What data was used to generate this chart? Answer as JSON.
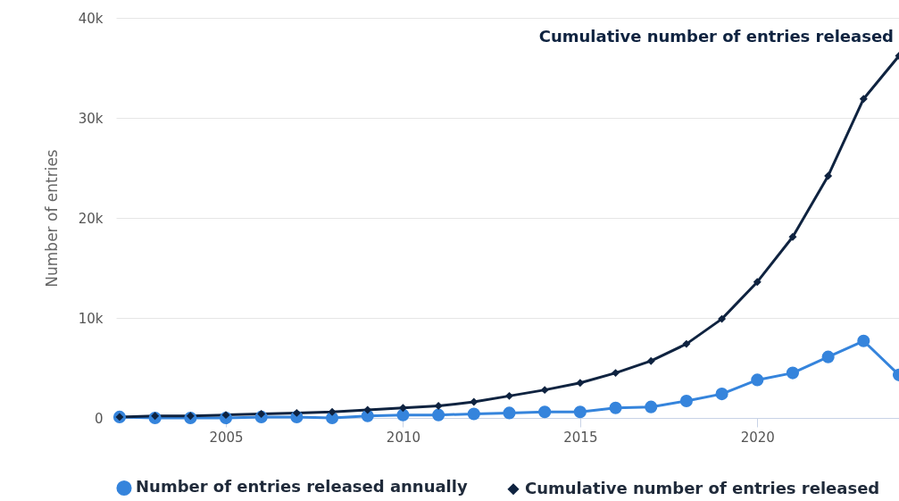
{
  "chart_data": {
    "type": "line",
    "ylabel": "Number of entries",
    "x": [
      2002,
      2003,
      2004,
      2005,
      2006,
      2007,
      2008,
      2009,
      2010,
      2011,
      2012,
      2013,
      2014,
      2015,
      2016,
      2017,
      2018,
      2019,
      2020,
      2021,
      2022,
      2023,
      2024
    ],
    "series": [
      {
        "name": "Number of entries released annually",
        "color": "#3584dc",
        "marker": "circle",
        "values": [
          100,
          0,
          0,
          0,
          100,
          100,
          0,
          200,
          300,
          300,
          400,
          500,
          600,
          600,
          1000,
          1100,
          1700,
          2400,
          3800,
          4500,
          6100,
          7700,
          4300
        ]
      },
      {
        "name": "Cumulative number of entries released",
        "color": "#0f2340",
        "marker": "diamond",
        "values": [
          100,
          200,
          200,
          300,
          400,
          500,
          600,
          800,
          1000,
          1200,
          1600,
          2200,
          2800,
          3500,
          4500,
          5700,
          7400,
          9900,
          13600,
          18100,
          24200,
          31900,
          36200
        ]
      }
    ],
    "xlim": [
      2001.9,
      2024
    ],
    "xticks": [
      2005,
      2010,
      2015,
      2020
    ],
    "ylim": [
      0,
      40000
    ],
    "yticks": [
      0,
      {
        "value": 10000,
        "label": "10k"
      },
      {
        "value": 20000,
        "label": "20k"
      },
      {
        "value": 30000,
        "label": "30k"
      },
      {
        "value": 40000,
        "label": "40k"
      }
    ],
    "annotations": [
      {
        "text": "Cumulative number of entries released",
        "x": 2024,
        "y": 36200
      }
    ],
    "grid": "y",
    "legend": "bottom"
  }
}
